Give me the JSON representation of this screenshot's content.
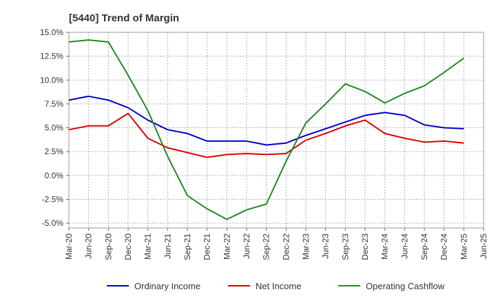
{
  "chart_data": {
    "type": "line",
    "title": "[5440]  Trend of Margin",
    "xlabel": "",
    "ylabel": "",
    "x": [
      "Mar-20",
      "Jun-20",
      "Sep-20",
      "Dec-20",
      "Mar-21",
      "Jun-21",
      "Sep-21",
      "Dec-21",
      "Mar-22",
      "Jun-22",
      "Sep-22",
      "Dec-22",
      "Mar-23",
      "Jun-23",
      "Sep-23",
      "Dec-23",
      "Mar-24",
      "Jun-24",
      "Sep-24",
      "Dec-24",
      "Mar-25",
      "Jun-25"
    ],
    "y_ticks": [
      "15.0%",
      "12.5%",
      "10.0%",
      "7.5%",
      "5.0%",
      "2.5%",
      "0.0%",
      "-2.5%",
      "-5.0%"
    ],
    "y_tick_values": [
      15,
      12.5,
      10,
      7.5,
      5,
      2.5,
      0,
      -2.5,
      -5
    ],
    "ylim": [
      -5.5,
      15
    ],
    "grid": true,
    "legend_position": "bottom",
    "series": [
      {
        "name": "Ordinary Income",
        "color": "#0000cc",
        "values": [
          7.9,
          8.3,
          7.9,
          7.1,
          5.8,
          4.8,
          4.4,
          3.6,
          3.6,
          3.6,
          3.2,
          3.4,
          4.2,
          4.9,
          5.6,
          6.3,
          6.6,
          6.3,
          5.3,
          5.0,
          4.9,
          null
        ]
      },
      {
        "name": "Net Income",
        "color": "#dd0000",
        "values": [
          4.8,
          5.2,
          5.2,
          6.5,
          3.9,
          2.9,
          2.4,
          1.9,
          2.2,
          2.3,
          2.2,
          2.3,
          3.7,
          4.4,
          5.2,
          5.8,
          4.4,
          3.9,
          3.5,
          3.6,
          3.4,
          null
        ]
      },
      {
        "name": "Operating Cashflow",
        "color": "#228822",
        "values": [
          14.0,
          14.2,
          14.0,
          10.5,
          6.8,
          2.0,
          -2.1,
          -3.5,
          -4.6,
          -3.6,
          -3.0,
          1.5,
          5.5,
          7.5,
          9.6,
          8.8,
          7.6,
          8.6,
          9.4,
          10.8,
          12.3,
          null
        ]
      }
    ]
  }
}
